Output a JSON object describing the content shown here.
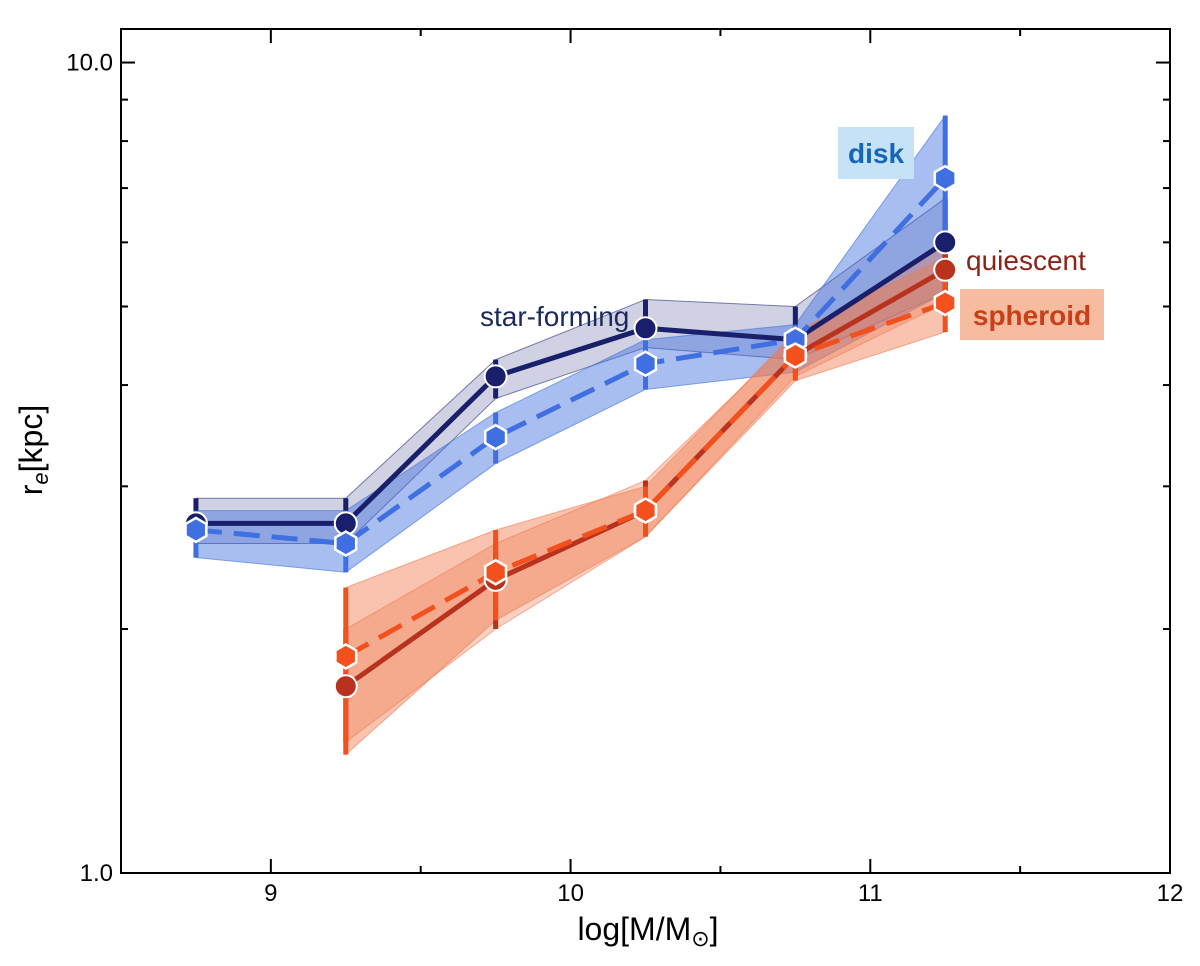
{
  "chart_data": {
    "type": "line",
    "xlabel": "log[M/M",
    "xlabel_sub": "⊙",
    "xlabel_close": "]",
    "ylabel": "r",
    "ylabel_sub": "e",
    "ylabel_unit": "[kpc]",
    "xlim": [
      8.5,
      12
    ],
    "ylim": [
      1.0,
      11.0
    ],
    "yscale": "log",
    "xticks": [
      9,
      10,
      11,
      12
    ],
    "xtick_labels": [
      "9",
      "10",
      "11",
      "12"
    ],
    "yticks": [
      1.0,
      10.0
    ],
    "ytick_labels": [
      "1.0",
      "10.0"
    ],
    "grid": false,
    "series": [
      {
        "name": "star-forming",
        "style": "solid",
        "marker": "circle",
        "color": "#1a1f6b",
        "band_color": "#2a2f7a",
        "x": [
          8.75,
          9.25,
          9.75,
          10.25,
          10.75,
          11.25
        ],
        "y": [
          2.7,
          2.7,
          4.1,
          4.7,
          4.55,
          6.0
        ],
        "y_low": [
          2.55,
          2.55,
          3.85,
          4.45,
          4.3,
          5.2
        ],
        "y_high": [
          2.9,
          2.9,
          4.3,
          5.1,
          5.0,
          6.8
        ],
        "label_color": "#1a2a5e"
      },
      {
        "name": "disk",
        "style": "dashed",
        "marker": "hexagon",
        "color": "#3f6fe0",
        "band_color": "#3f6fe0",
        "x": [
          8.75,
          9.25,
          9.75,
          10.25,
          10.75,
          11.25
        ],
        "y": [
          2.65,
          2.55,
          3.45,
          4.25,
          4.55,
          7.2
        ],
        "y_low": [
          2.45,
          2.35,
          3.2,
          3.95,
          4.15,
          5.2
        ],
        "y_high": [
          2.8,
          2.8,
          3.7,
          4.55,
          4.75,
          8.6
        ],
        "label_color": "#1566b8",
        "label_bg": "#c6e2f7"
      },
      {
        "name": "quiescent",
        "style": "solid",
        "marker": "circle",
        "color": "#b8321e",
        "band_color": "#f07a50",
        "x": [
          9.25,
          9.75,
          10.25,
          10.75,
          11.25
        ],
        "y": [
          1.7,
          2.3,
          2.8,
          4.35,
          5.55
        ],
        "y_low": [
          1.45,
          2.0,
          2.6,
          4.1,
          5.05
        ],
        "y_high": [
          2.0,
          2.55,
          3.05,
          4.6,
          5.95
        ],
        "label_color": "#8a2418"
      },
      {
        "name": "spheroid",
        "style": "dashed",
        "marker": "hexagon",
        "color": "#f2501d",
        "band_color": "#f27a4d",
        "x": [
          9.25,
          9.75,
          10.25,
          10.75,
          11.25
        ],
        "y": [
          1.85,
          2.35,
          2.8,
          4.35,
          5.05
        ],
        "y_low": [
          1.4,
          2.05,
          2.6,
          4.05,
          4.65
        ],
        "y_high": [
          2.25,
          2.65,
          3.0,
          4.65,
          5.75
        ],
        "label_color": "#c8401a",
        "label_bg": "#f7bba0"
      }
    ]
  }
}
